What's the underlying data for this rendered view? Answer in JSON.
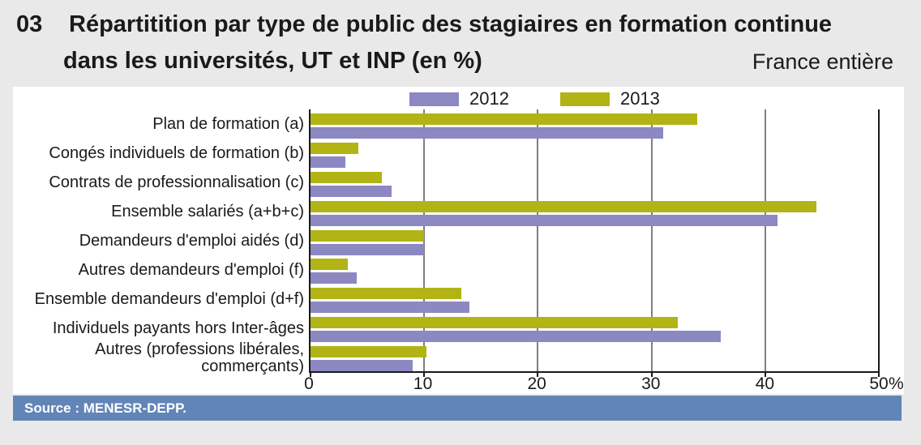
{
  "header": {
    "number": "03",
    "title_line1": "Répartitition par type de public des stagiaires en formation continue",
    "title_line2": "dans les universités, UT et INP (en %)",
    "region": "France entière"
  },
  "source": "Source : MENESR-DEPP.",
  "colors": {
    "background": "#e9e9e9",
    "panel": "#ffffff",
    "series_2012": "#8b88c2",
    "series_2013": "#b1b414",
    "source_bar": "#6285b7",
    "gridline": "#7f7f7f",
    "axis": "#1a1a1a"
  },
  "chart_data": {
    "type": "bar",
    "orientation": "horizontal",
    "title": "Répartitition par type de public des stagiaires en formation continue dans les universités, UT et INP (en %)",
    "region_note": "France entière",
    "categories": [
      "Plan de formation (a)",
      "Congés individuels de formation (b)",
      "Contrats de professionnalisation (c)",
      "Ensemble salariés (a+b+c)",
      "Demandeurs d'emploi aidés (d)",
      "Autres demandeurs d'emploi (f)",
      "Ensemble demandeurs d'emploi (d+f)",
      "Individuels payants hors Inter-âges",
      "Autres (professions libérales, commerçants)"
    ],
    "series": [
      {
        "name": "2012",
        "color": "#8b88c2",
        "values": [
          31,
          3.1,
          7.1,
          41.1,
          10,
          4.1,
          14,
          36.1,
          9
        ]
      },
      {
        "name": "2013",
        "color": "#b1b414",
        "values": [
          34,
          4.2,
          6.3,
          44.5,
          10,
          3.3,
          13.3,
          32.3,
          10.2
        ]
      }
    ],
    "bar_order_per_category": [
      "2013",
      "2012"
    ],
    "xlim": [
      0,
      50
    ],
    "xticks": [
      0,
      10,
      20,
      30,
      40,
      50
    ],
    "x_unit": "%",
    "grid": true,
    "legend_position": "top"
  }
}
